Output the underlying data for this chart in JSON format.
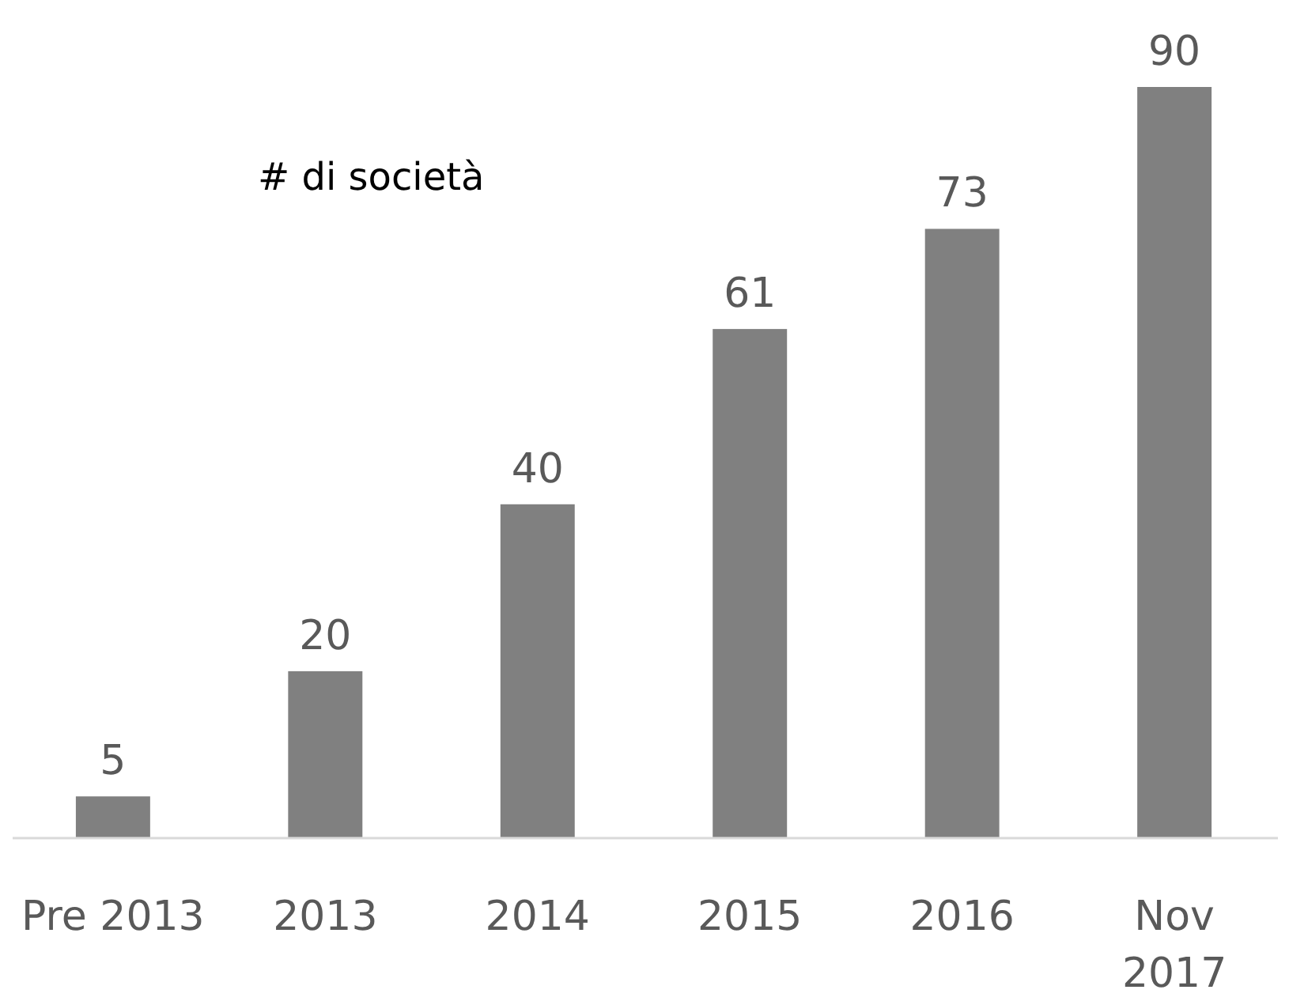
{
  "chart_data": {
    "type": "bar",
    "title": "# di società",
    "categories": [
      "Pre 2013",
      "2013",
      "2014",
      "2015",
      "2016",
      "Nov 2017"
    ],
    "values": [
      5,
      20,
      40,
      61,
      73,
      90
    ],
    "color": "#808080",
    "ylim": [
      0,
      90
    ],
    "data_labels": true
  }
}
